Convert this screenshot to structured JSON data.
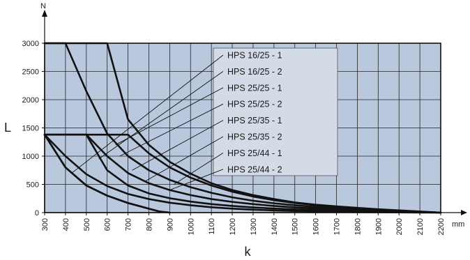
{
  "chart_data": {
    "type": "line",
    "title": "",
    "xlabel": "k",
    "ylabel": "L",
    "x_unit": "mm",
    "y_unit": "N",
    "xlim": [
      300,
      2200
    ],
    "ylim": [
      0,
      3000
    ],
    "x_ticks": [
      300,
      400,
      500,
      600,
      700,
      800,
      900,
      1000,
      1100,
      1200,
      1300,
      1400,
      1500,
      1600,
      1700,
      1800,
      1900,
      2000,
      2100,
      2200
    ],
    "y_ticks": [
      0,
      500,
      1000,
      1500,
      2000,
      2500,
      3000
    ],
    "grid": true,
    "colors": {
      "plot_bg": "#b9c8dd",
      "legend_bg": "#d3dbe7",
      "curve": "#111111",
      "grid": "#222222"
    },
    "series": [
      {
        "name": "HPS 16/25 - 1",
        "x": [
          300,
          400,
          500,
          600,
          700,
          800,
          900,
          1000,
          1100,
          1200,
          1300,
          1400,
          1500,
          1600,
          1700,
          1800,
          1900,
          2000,
          2100,
          2200
        ],
        "y": [
          3000,
          3000,
          3000,
          3000,
          1650,
          1200,
          900,
          690,
          520,
          400,
          310,
          240,
          180,
          140,
          110,
          85,
          60,
          40,
          20,
          0
        ]
      },
      {
        "name": "HPS 16/25 - 2",
        "x": [
          300,
          400,
          500,
          600,
          700,
          800,
          900,
          1000,
          1100,
          1200,
          1300,
          1400,
          1500,
          1600,
          1700,
          1800,
          1900,
          2000,
          2100,
          2200
        ],
        "y": [
          3000,
          3000,
          2150,
          1400,
          1000,
          750,
          580,
          450,
          350,
          270,
          210,
          165,
          130,
          100,
          75,
          55,
          40,
          25,
          12,
          0
        ]
      },
      {
        "name": "HPS 25/25 - 1",
        "x": [
          300,
          400,
          500,
          600,
          700,
          800,
          900,
          1000,
          1100,
          1200,
          1300,
          1400,
          1500,
          1600,
          1700,
          1800,
          1900,
          2000,
          2100,
          2200
        ],
        "y": [
          1380,
          1380,
          1380,
          1380,
          1380,
          1050,
          800,
          620,
          480,
          370,
          285,
          220,
          170,
          130,
          100,
          75,
          55,
          35,
          18,
          0
        ]
      },
      {
        "name": "HPS 25/25 - 2",
        "x": [
          300,
          400,
          500,
          600,
          700,
          800,
          900,
          1000,
          1100,
          1200,
          1300,
          1400,
          1500,
          1600,
          1700,
          1800,
          1900,
          2000,
          2100,
          2200
        ],
        "y": [
          1380,
          1380,
          1380,
          1000,
          700,
          520,
          400,
          310,
          240,
          190,
          150,
          118,
          92,
          72,
          55,
          42,
          30,
          20,
          10,
          0
        ]
      },
      {
        "name": "HPS 25/35 - 1",
        "x": [
          300,
          400,
          500,
          600,
          700,
          800,
          900,
          1000,
          1100,
          1200,
          1300,
          1400,
          1500,
          1600,
          1700,
          1800,
          1900,
          2000,
          2100,
          2200
        ],
        "y": [
          1380,
          1380,
          1380,
          750,
          480,
          340,
          255,
          195,
          150,
          118,
          92,
          72,
          56,
          43,
          33,
          25,
          18,
          11,
          5,
          0
        ]
      },
      {
        "name": "HPS 25/35 - 2",
        "x": [
          300,
          400,
          500,
          600,
          700,
          800,
          900,
          1000,
          1100,
          1200,
          1300,
          1400,
          1500,
          1600,
          1700,
          1800,
          1900,
          2000,
          2100,
          2200
        ],
        "y": [
          1380,
          1000,
          680,
          470,
          330,
          240,
          175,
          130,
          95,
          70,
          52,
          38,
          28,
          20,
          14,
          9,
          6,
          3,
          1,
          0
        ]
      },
      {
        "name": "HPS 25/44 - 1",
        "x": [
          300,
          400,
          500,
          600,
          700,
          800,
          850,
          900
        ],
        "y": [
          1380,
          800,
          480,
          300,
          170,
          70,
          20,
          0
        ]
      },
      {
        "name": "HPS 25/44 - 2",
        "x": [
          300,
          400,
          500,
          600,
          700,
          800,
          850,
          900
        ],
        "y": [
          1380,
          800,
          480,
          300,
          170,
          70,
          20,
          0
        ]
      }
    ],
    "legend_position": "upper-center",
    "legend_leaders": [
      {
        "label_index": 0,
        "target_x": 430,
        "target_y": 700
      },
      {
        "label_index": 1,
        "target_x": 560,
        "target_y": 950
      },
      {
        "label_index": 2,
        "target_x": 640,
        "target_y": 1200
      },
      {
        "label_index": 3,
        "target_x": 660,
        "target_y": 1000
      },
      {
        "label_index": 4,
        "target_x": 720,
        "target_y": 750
      },
      {
        "label_index": 5,
        "target_x": 780,
        "target_y": 550
      },
      {
        "label_index": 6,
        "target_x": 920,
        "target_y": 500
      },
      {
        "label_index": 7,
        "target_x": 900,
        "target_y": 400
      }
    ]
  }
}
